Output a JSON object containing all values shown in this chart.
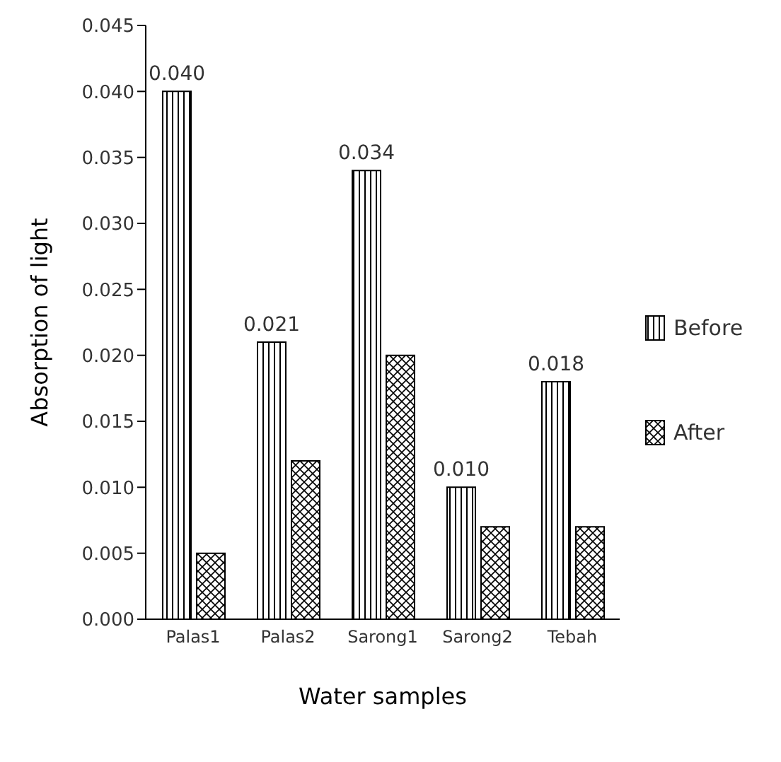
{
  "chart_data": {
    "type": "bar",
    "xlabel": "Water samples",
    "ylabel": "Absorption of light",
    "categories": [
      "Palas1",
      "Palas2",
      "Sarong1",
      "Sarong2",
      "Tebah"
    ],
    "series": [
      {
        "name": "Before",
        "color": "#000000",
        "values": [
          0.04,
          0.021,
          0.034,
          0.01,
          0.018
        ],
        "value_labels": [
          "0.040",
          "0.021",
          "0.034",
          "0.010",
          "0.018"
        ]
      },
      {
        "name": "After",
        "color": "#000000",
        "values": [
          0.005,
          0.012,
          0.02,
          0.007,
          0.007
        ]
      }
    ],
    "ylim": [
      0,
      0.045
    ],
    "yticks": [
      {
        "value": 0,
        "label": "0.000"
      },
      {
        "value": 0.005,
        "label": "0.005"
      },
      {
        "value": 0.01,
        "label": "0.010"
      },
      {
        "value": 0.015,
        "label": "0.015"
      },
      {
        "value": 0.02,
        "label": "0.020"
      },
      {
        "value": 0.025,
        "label": "0.025"
      },
      {
        "value": 0.03,
        "label": "0.030"
      },
      {
        "value": 0.035,
        "label": "0.035"
      },
      {
        "value": 0.04,
        "label": "0.040"
      },
      {
        "value": 0.045,
        "label": "0.045"
      }
    ],
    "grid": false,
    "legend": "right"
  }
}
